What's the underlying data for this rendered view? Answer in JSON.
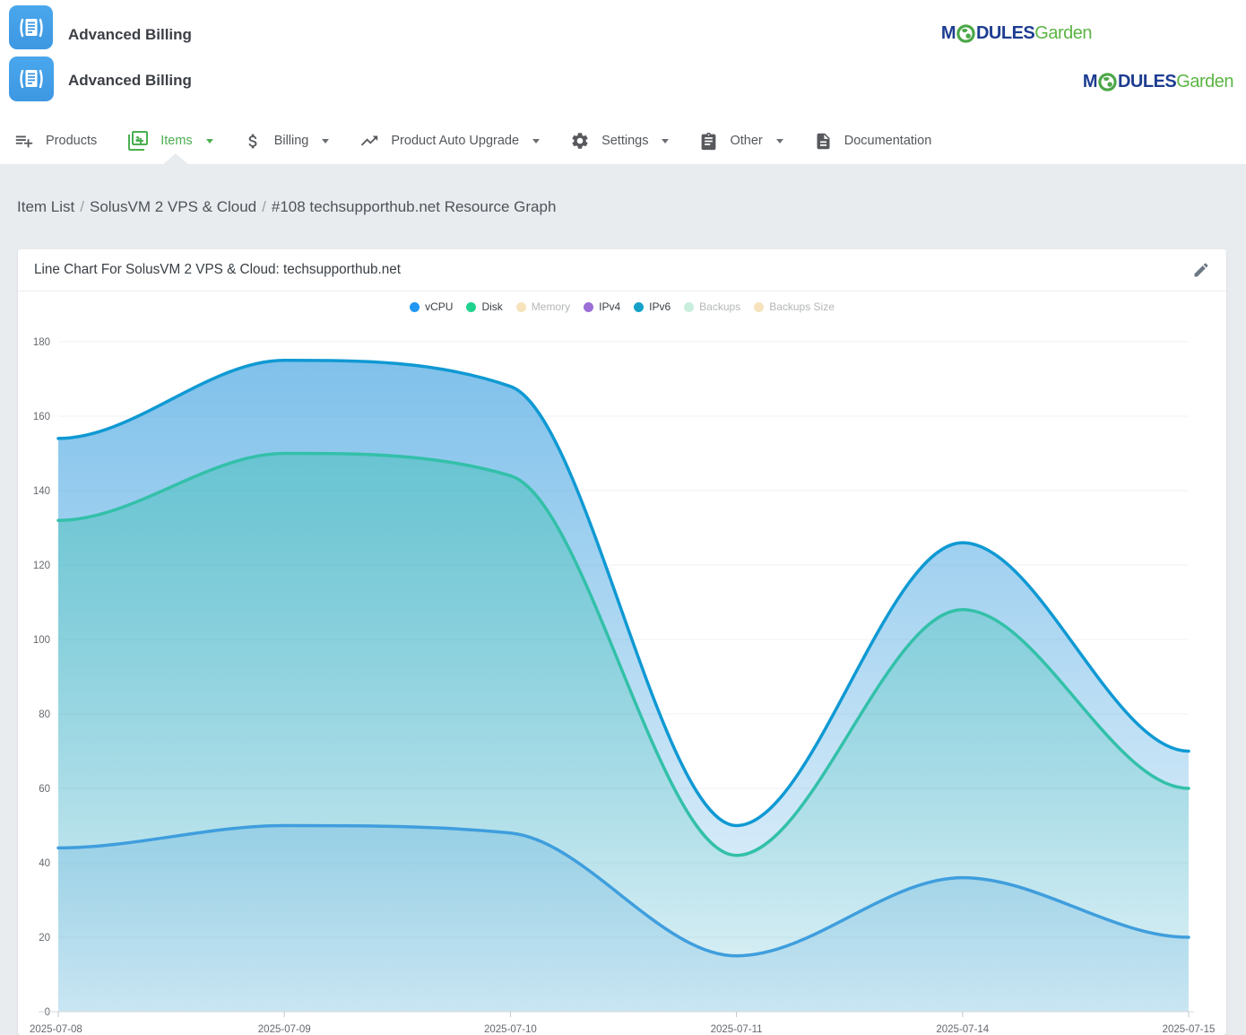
{
  "header": {
    "rows": [
      {
        "title": "Advanced Billing"
      },
      {
        "title": "Advanced Billing"
      }
    ],
    "brand": {
      "part_m": "M",
      "part_dules": "DULES",
      "part_garden": "Garden"
    }
  },
  "nav": {
    "items": [
      {
        "label": "Products",
        "icon": "playlist-add-icon",
        "caret": false,
        "active": false
      },
      {
        "label": "Items",
        "icon": "filter-9-plus-icon",
        "caret": true,
        "active": true
      },
      {
        "label": "Billing",
        "icon": "dollar-icon",
        "caret": true,
        "active": false
      },
      {
        "label": "Product Auto Upgrade",
        "icon": "trending-up-icon",
        "caret": true,
        "active": false
      },
      {
        "label": "Settings",
        "icon": "gear-icon",
        "caret": true,
        "active": false
      },
      {
        "label": "Other",
        "icon": "clipboard-icon",
        "caret": true,
        "active": false
      },
      {
        "label": "Documentation",
        "icon": "document-icon",
        "caret": false,
        "active": false
      }
    ]
  },
  "breadcrumb": {
    "items": [
      "Item List",
      "SolusVM 2 VPS & Cloud",
      "#108 techsupporthub.net Resource Graph"
    ],
    "separator": "/"
  },
  "card": {
    "title": "Line Chart For SolusVM 2 VPS & Cloud: techsupporthub.net"
  },
  "colors": {
    "accent_green": "#4caf50",
    "brand_navy": "#1d3d91",
    "brand_green": "#5cb544",
    "page_background": "#e9ecef",
    "grid_line": "#f0f1f2",
    "axis_line": "#d6d9dc",
    "axis_text": "#65696e"
  },
  "chart_data": {
    "type": "area",
    "title": "Line Chart For SolusVM 2 VPS & Cloud: techsupporthub.net",
    "categories": [
      "2025-07-08",
      "2025-07-09",
      "2025-07-10",
      "2025-07-11",
      "2025-07-14",
      "2025-07-15"
    ],
    "series": [
      {
        "name": "vCPU",
        "values": [
          44,
          50,
          48,
          15,
          36,
          20
        ],
        "line_color": "#3f9edd",
        "fill_from": "rgba(63,155,215,0.42)",
        "fill_to": "rgba(63,155,215,0.16)"
      },
      {
        "name": "Disk",
        "values": [
          132,
          150,
          144,
          42,
          108,
          60
        ],
        "line_color": "#33c0a9",
        "fill_from": "rgba(52,190,172,0.50)",
        "fill_to": "rgba(52,190,172,0.06)"
      },
      {
        "name": "IPv4",
        "values": [
          0,
          0,
          0,
          0,
          0,
          0
        ],
        "line_color": "#9b6fd6",
        "fill_from": "rgba(155,111,214,0.4)",
        "fill_to": "rgba(155,111,214,0.05)"
      },
      {
        "name": "IPv6",
        "values": [
          154,
          175,
          168,
          50,
          126,
          70
        ],
        "line_color": "#0f99d3",
        "fill_from": "rgba(30,145,219,0.58)",
        "fill_to": "rgba(30,145,219,0.07)"
      }
    ],
    "draw_order": [
      "IPv6",
      "Disk",
      "vCPU",
      "IPv4"
    ],
    "legend": [
      {
        "label": "vCPU",
        "color": "#2196f3",
        "active": true
      },
      {
        "label": "Disk",
        "color": "#1fd38e",
        "active": true
      },
      {
        "label": "Memory",
        "color": "#f6e3bc",
        "active": false
      },
      {
        "label": "IPv4",
        "color": "#9b6fd6",
        "active": true
      },
      {
        "label": "IPv6",
        "color": "#16a2c8",
        "active": true
      },
      {
        "label": "Backups",
        "color": "#c9eedd",
        "active": false
      },
      {
        "label": "Backups Size",
        "color": "#f6e3bc",
        "active": false
      }
    ],
    "ylim": [
      0,
      180
    ],
    "ytick_step": 20,
    "grid": true,
    "legend_position": "top"
  }
}
